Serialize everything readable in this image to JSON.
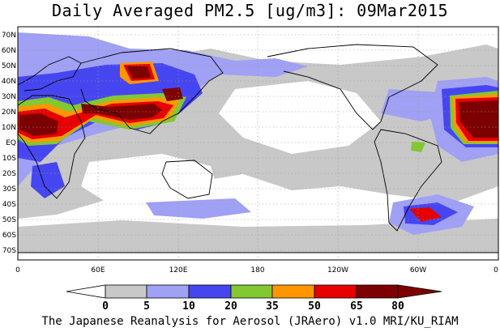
{
  "title": "Daily Averaged PM2.5 [ug/m3]: 09Mar2015",
  "lat_labels": [
    "70N",
    "60N",
    "50N",
    "40N",
    "30N",
    "20N",
    "10N",
    "EQ",
    "10S",
    "20S",
    "30S",
    "40S",
    "50S",
    "60S",
    "70S"
  ],
  "lon_labels": [
    "0",
    "60E",
    "120E",
    "180",
    "120W",
    "60W",
    "0"
  ],
  "colorbar": {
    "ticks": [
      "0",
      "5",
      "10",
      "20",
      "35",
      "50",
      "65",
      "80"
    ],
    "colors": [
      "#ffffff",
      "#c8c8c8",
      "#a0a0f5",
      "#4646f0",
      "#82c832",
      "#ff9600",
      "#e60000",
      "#7d0000"
    ]
  },
  "credit": "The Japanese Reanalysis for Aerosol (JRAero) v1.0 MRI/KU_RIAM"
}
